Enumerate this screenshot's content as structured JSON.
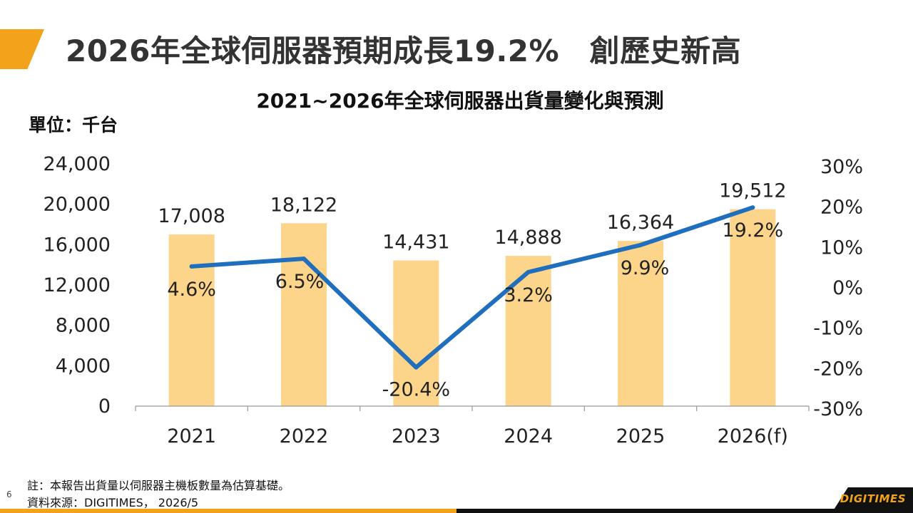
{
  "slide": {
    "title": "2026年全球伺服器預期成長19.2%　創歷史新高",
    "page_number": "6",
    "note": "註：本報告出貨量以伺服器主機板數量為估算基礎。",
    "source": "資料來源：DIGITIMES， 2026/5",
    "logo": "DIGITIMES",
    "colors": {
      "accent": "#f3a21b",
      "bar": "#fdd58a",
      "line": "#1f6fbe",
      "footer_dark": "#111111"
    }
  },
  "chart_data": {
    "type": "bar",
    "title": "2021~2026年全球伺服器出貨量變化與預測",
    "unit_label": "單位：千台",
    "categories": [
      "2021",
      "2022",
      "2023",
      "2024",
      "2025",
      "2026(f)"
    ],
    "series": [
      {
        "type": "bar",
        "axis": "left",
        "values": [
          17008,
          18122,
          14431,
          14888,
          16364,
          19512
        ],
        "labels": [
          "17,008",
          "18,122",
          "14,431",
          "14,888",
          "16,364",
          "19,512"
        ]
      },
      {
        "type": "line",
        "axis": "right",
        "values": [
          4.6,
          6.5,
          -20.4,
          3.2,
          9.9,
          19.2
        ],
        "labels": [
          "4.6%",
          "6.5%",
          "-20.4%",
          "3.2%",
          "9.9%",
          "19.2%"
        ]
      }
    ],
    "y_left": {
      "lim": [
        0,
        24000
      ],
      "ticks": [
        "0",
        "4,000",
        "8,000",
        "12,000",
        "16,000",
        "20,000",
        "24,000"
      ]
    },
    "y_right": {
      "lim": [
        -30,
        30
      ],
      "ticks": [
        "-30%",
        "-20%",
        "-10%",
        "0%",
        "10%",
        "20%",
        "30%"
      ]
    },
    "grid": false,
    "legend": "none"
  }
}
